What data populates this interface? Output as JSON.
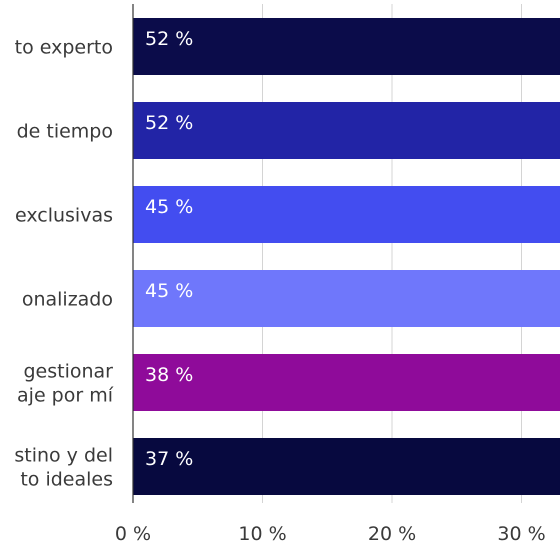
{
  "chart_data": {
    "type": "bar",
    "orientation": "horizontal",
    "categories": [
      [
        "to experto"
      ],
      [
        "de tiempo"
      ],
      [
        "exclusivas"
      ],
      [
        "onalizado"
      ],
      [
        "gestionar",
        "aje por mí"
      ],
      [
        "stino y del",
        "to ideales"
      ]
    ],
    "values": [
      52,
      52,
      45,
      45,
      38,
      37
    ],
    "value_labels": [
      "52 %",
      "52 %",
      "45 %",
      "45 %",
      "38 %",
      "37 %"
    ],
    "bar_colors": [
      "#0b0c4a",
      "#2224a6",
      "#434df0",
      "#6f77fb",
      "#8f0b9a",
      "#07093f"
    ],
    "xlim": [
      0,
      60
    ],
    "xticks": [
      0,
      10,
      20,
      30
    ],
    "xtick_labels": [
      "0 %",
      "10 %",
      "20 %",
      "30 %"
    ],
    "grid": true,
    "title": "",
    "xlabel": "",
    "ylabel": ""
  }
}
